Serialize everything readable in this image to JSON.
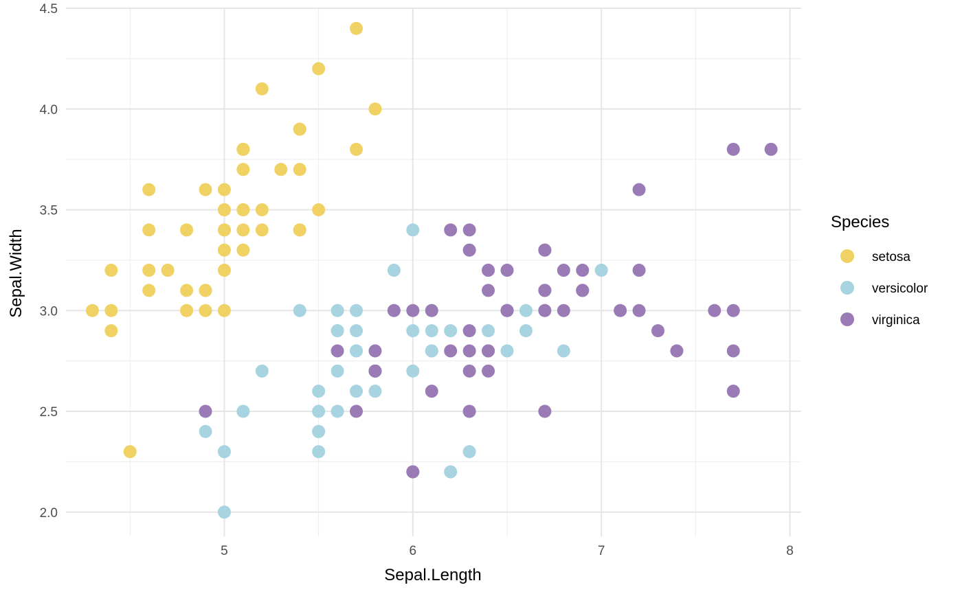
{
  "chart_data": {
    "type": "scatter",
    "title": "",
    "xlabel": "Sepal.Length",
    "ylabel": "Sepal.Width",
    "xlim": [
      4.16,
      8.06
    ],
    "ylim": [
      1.88,
      4.5
    ],
    "x_ticks": [
      5,
      6,
      7,
      8
    ],
    "y_ticks": [
      2.0,
      2.5,
      3.0,
      3.5,
      4.0,
      4.5
    ],
    "x_tick_labels": [
      "5",
      "6",
      "7",
      "8"
    ],
    "y_tick_labels": [
      "2.0",
      "2.5",
      "3.0",
      "3.5",
      "4.0",
      "4.5"
    ],
    "grid": true,
    "legend": {
      "title": "Species",
      "placement": "right"
    },
    "series": [
      {
        "name": "setosa",
        "color": "#f0d264",
        "points": [
          [
            4.3,
            3.0
          ],
          [
            4.4,
            3.0
          ],
          [
            4.4,
            2.9
          ],
          [
            4.4,
            3.2
          ],
          [
            4.5,
            2.3
          ],
          [
            4.6,
            3.6
          ],
          [
            4.6,
            3.4
          ],
          [
            4.6,
            3.1
          ],
          [
            4.6,
            3.2
          ],
          [
            4.7,
            3.2
          ],
          [
            4.7,
            3.2
          ],
          [
            4.8,
            3.4
          ],
          [
            4.8,
            3.0
          ],
          [
            4.8,
            3.1
          ],
          [
            4.8,
            3.0
          ],
          [
            4.8,
            3.4
          ],
          [
            4.9,
            3.1
          ],
          [
            4.9,
            3.0
          ],
          [
            4.9,
            3.6
          ],
          [
            4.9,
            3.1
          ],
          [
            5.0,
            3.0
          ],
          [
            5.0,
            3.4
          ],
          [
            5.0,
            3.3
          ],
          [
            5.0,
            3.5
          ],
          [
            5.0,
            3.2
          ],
          [
            5.0,
            3.4
          ],
          [
            5.0,
            3.6
          ],
          [
            5.0,
            3.5
          ],
          [
            5.1,
            3.5
          ],
          [
            5.1,
            3.8
          ],
          [
            5.1,
            3.8
          ],
          [
            5.1,
            3.5
          ],
          [
            5.1,
            3.4
          ],
          [
            5.1,
            3.7
          ],
          [
            5.1,
            3.3
          ],
          [
            5.1,
            3.8
          ],
          [
            5.2,
            3.5
          ],
          [
            5.2,
            3.4
          ],
          [
            5.2,
            4.1
          ],
          [
            5.3,
            3.7
          ],
          [
            5.4,
            3.9
          ],
          [
            5.4,
            3.4
          ],
          [
            5.4,
            3.9
          ],
          [
            5.4,
            3.7
          ],
          [
            5.4,
            3.4
          ],
          [
            5.5,
            4.2
          ],
          [
            5.5,
            3.5
          ],
          [
            5.7,
            4.4
          ],
          [
            5.7,
            3.8
          ],
          [
            5.8,
            4.0
          ]
        ]
      },
      {
        "name": "versicolor",
        "color": "#a8d3e0",
        "points": [
          [
            4.9,
            2.4
          ],
          [
            5.0,
            2.0
          ],
          [
            5.0,
            2.3
          ],
          [
            5.1,
            2.5
          ],
          [
            5.2,
            2.7
          ],
          [
            5.4,
            3.0
          ],
          [
            5.5,
            2.3
          ],
          [
            5.5,
            2.4
          ],
          [
            5.5,
            2.4
          ],
          [
            5.5,
            2.5
          ],
          [
            5.5,
            2.6
          ],
          [
            5.6,
            2.9
          ],
          [
            5.6,
            2.9
          ],
          [
            5.6,
            3.0
          ],
          [
            5.6,
            2.5
          ],
          [
            5.6,
            2.7
          ],
          [
            5.7,
            2.8
          ],
          [
            5.7,
            2.6
          ],
          [
            5.7,
            2.9
          ],
          [
            5.7,
            3.0
          ],
          [
            5.7,
            2.8
          ],
          [
            5.8,
            2.7
          ],
          [
            5.8,
            2.6
          ],
          [
            5.8,
            2.7
          ],
          [
            5.9,
            3.2
          ],
          [
            5.9,
            3.0
          ],
          [
            6.0,
            2.2
          ],
          [
            6.0,
            2.9
          ],
          [
            6.0,
            2.7
          ],
          [
            6.0,
            3.4
          ],
          [
            6.1,
            2.8
          ],
          [
            6.1,
            2.9
          ],
          [
            6.1,
            3.0
          ],
          [
            6.1,
            2.8
          ],
          [
            6.2,
            2.2
          ],
          [
            6.2,
            2.9
          ],
          [
            6.3,
            2.5
          ],
          [
            6.3,
            3.3
          ],
          [
            6.3,
            2.3
          ],
          [
            6.4,
            3.2
          ],
          [
            6.4,
            2.9
          ],
          [
            6.5,
            2.8
          ],
          [
            6.6,
            2.9
          ],
          [
            6.6,
            3.0
          ],
          [
            6.7,
            3.1
          ],
          [
            6.7,
            3.0
          ],
          [
            6.7,
            3.1
          ],
          [
            6.8,
            2.8
          ],
          [
            6.9,
            3.1
          ],
          [
            7.0,
            3.2
          ]
        ]
      },
      {
        "name": "virginica",
        "color": "#9b7bb5",
        "points": [
          [
            4.9,
            2.5
          ],
          [
            5.6,
            2.8
          ],
          [
            5.7,
            2.5
          ],
          [
            5.8,
            2.7
          ],
          [
            5.8,
            2.8
          ],
          [
            5.8,
            2.7
          ],
          [
            5.9,
            3.0
          ],
          [
            6.0,
            2.2
          ],
          [
            6.0,
            3.0
          ],
          [
            6.1,
            2.6
          ],
          [
            6.1,
            3.0
          ],
          [
            6.2,
            2.8
          ],
          [
            6.2,
            3.4
          ],
          [
            6.3,
            3.3
          ],
          [
            6.3,
            2.9
          ],
          [
            6.3,
            2.7
          ],
          [
            6.3,
            2.5
          ],
          [
            6.3,
            2.8
          ],
          [
            6.3,
            3.4
          ],
          [
            6.4,
            2.8
          ],
          [
            6.4,
            3.2
          ],
          [
            6.4,
            2.8
          ],
          [
            6.4,
            3.1
          ],
          [
            6.4,
            2.7
          ],
          [
            6.5,
            3.0
          ],
          [
            6.5,
            3.0
          ],
          [
            6.5,
            3.2
          ],
          [
            6.5,
            3.0
          ],
          [
            6.7,
            3.3
          ],
          [
            6.7,
            2.5
          ],
          [
            6.7,
            3.3
          ],
          [
            6.7,
            3.1
          ],
          [
            6.7,
            3.0
          ],
          [
            6.8,
            3.0
          ],
          [
            6.8,
            3.2
          ],
          [
            6.9,
            3.1
          ],
          [
            6.9,
            3.2
          ],
          [
            6.9,
            3.1
          ],
          [
            7.1,
            3.0
          ],
          [
            7.2,
            3.6
          ],
          [
            7.2,
            3.2
          ],
          [
            7.2,
            3.0
          ],
          [
            7.3,
            2.9
          ],
          [
            7.4,
            2.8
          ],
          [
            7.6,
            3.0
          ],
          [
            7.7,
            3.8
          ],
          [
            7.7,
            2.6
          ],
          [
            7.7,
            2.8
          ],
          [
            7.7,
            3.0
          ],
          [
            7.9,
            3.8
          ]
        ]
      }
    ]
  }
}
